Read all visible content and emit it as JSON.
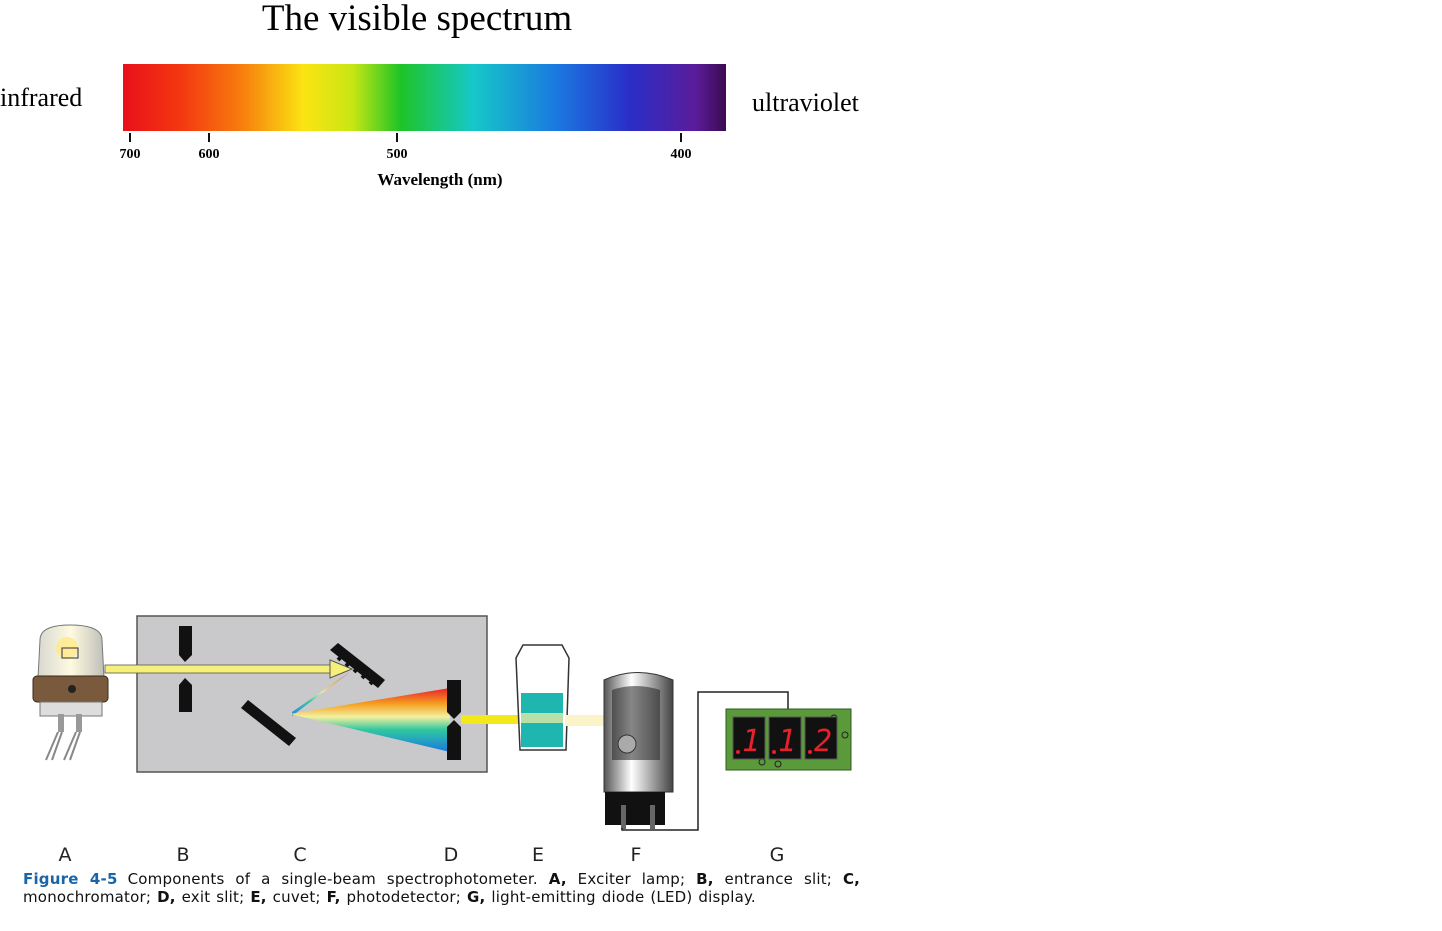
{
  "spectrum": {
    "title": "The visible spectrum",
    "left_label": "infrared",
    "right_label": "ultraviolet",
    "ticks": [
      700,
      600,
      500,
      400
    ],
    "axis_label": "Wavelength (nm)"
  },
  "diagram": {
    "labels": [
      "A",
      "B",
      "C",
      "D",
      "E",
      "F",
      "G"
    ],
    "display_digits": [
      "1",
      "1",
      "2"
    ]
  },
  "caption": {
    "label": "Figure 4-5",
    "text": "Components of a single-beam spectrophotometer.",
    "items": [
      {
        "key": "A,",
        "text": "Exciter lamp;"
      },
      {
        "key": "B,",
        "text": "entrance slit;"
      },
      {
        "key": "C,",
        "text": "monochromator;"
      },
      {
        "key": "D,",
        "text": "exit slit;"
      },
      {
        "key": "E,",
        "text": "cuvet;"
      },
      {
        "key": "F,",
        "text": "photodetector;"
      },
      {
        "key": "G,",
        "text": "light-emitting diode (LED) display."
      }
    ]
  }
}
